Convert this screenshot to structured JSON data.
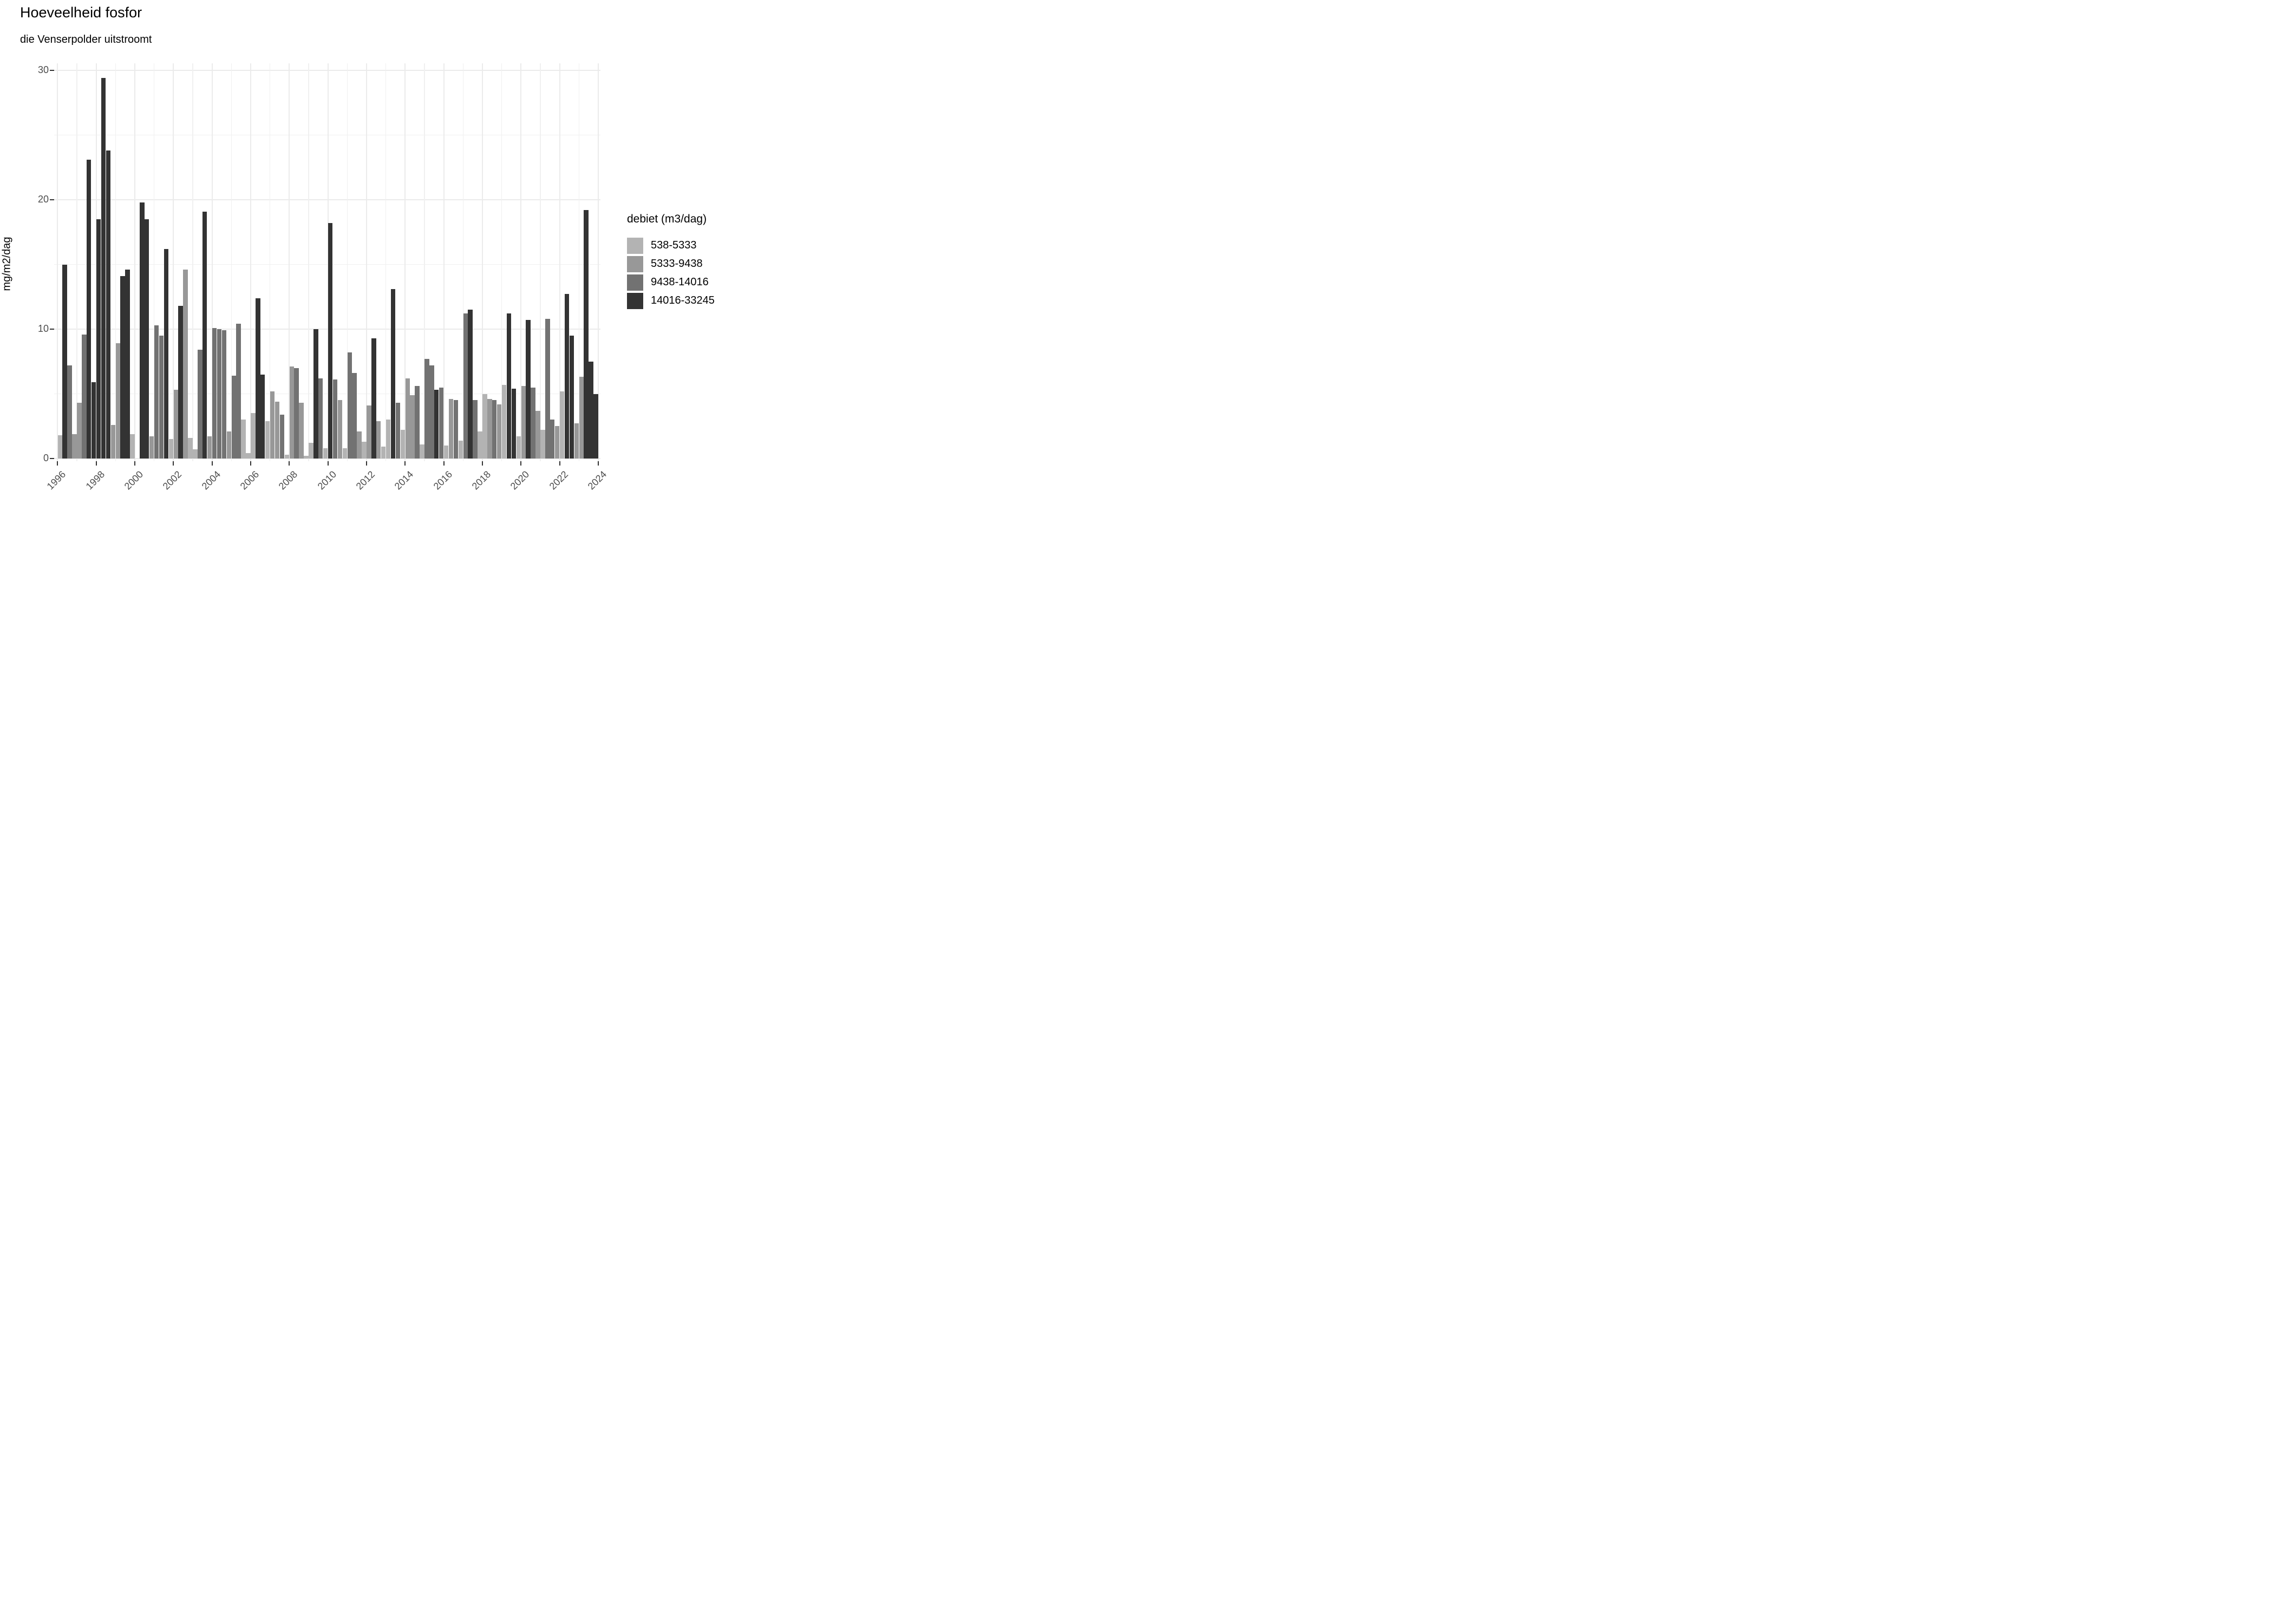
{
  "title": "Hoeveelheid fosfor",
  "subtitle": "die Venserpolder uitstroomt",
  "y_axis": {
    "label": "mg/m2/dag",
    "ticks": [
      0,
      10,
      20,
      30
    ],
    "minor_ticks": [
      5,
      15,
      25
    ]
  },
  "x_axis": {
    "tick_years": [
      1996,
      1998,
      2000,
      2002,
      2004,
      2006,
      2008,
      2010,
      2012,
      2014,
      2016,
      2018,
      2020,
      2022,
      2024
    ],
    "start_year": 1996,
    "end_year": 2024
  },
  "legend": {
    "title": "debiet (m3/dag)",
    "entries": [
      {
        "label": "538-5333",
        "color": "#b3b3b3"
      },
      {
        "label": "5333-9438",
        "color": "#989898"
      },
      {
        "label": "9438-14016",
        "color": "#727272"
      },
      {
        "label": "14016-33245",
        "color": "#333333"
      }
    ]
  },
  "chart_data": {
    "type": "bar",
    "title": "Hoeveelheid fosfor",
    "subtitle": "die Venserpolder uitstroomt",
    "ylabel": "mg/m2/dag",
    "ylim": [
      0,
      30.5
    ],
    "xlim": [
      1996,
      2024
    ],
    "grid": true,
    "legend_position": "right",
    "series_key": "debiet (m3/dag)",
    "categories": [
      "538-5333",
      "5333-9438",
      "9438-14016",
      "14016-33245"
    ],
    "points": [
      {
        "year": 1996,
        "quarter": 1,
        "debiet": "538-5333",
        "value": 1.8
      },
      {
        "year": 1996,
        "quarter": 2,
        "debiet": "14016-33245",
        "value": 15.0
      },
      {
        "year": 1996,
        "quarter": 3,
        "debiet": "9438-14016",
        "value": 7.2
      },
      {
        "year": 1996,
        "quarter": 4,
        "debiet": "5333-9438",
        "value": 1.9
      },
      {
        "year": 1997,
        "quarter": 1,
        "debiet": "5333-9438",
        "value": 4.3
      },
      {
        "year": 1997,
        "quarter": 2,
        "debiet": "9438-14016",
        "value": 9.6
      },
      {
        "year": 1997,
        "quarter": 3,
        "debiet": "14016-33245",
        "value": 23.1
      },
      {
        "year": 1997,
        "quarter": 4,
        "debiet": "14016-33245",
        "value": 5.9
      },
      {
        "year": 1998,
        "quarter": 1,
        "debiet": "14016-33245",
        "value": 18.5
      },
      {
        "year": 1998,
        "quarter": 2,
        "debiet": "14016-33245",
        "value": 29.4
      },
      {
        "year": 1998,
        "quarter": 3,
        "debiet": "14016-33245",
        "value": 23.8
      },
      {
        "year": 1998,
        "quarter": 4,
        "debiet": "5333-9438",
        "value": 2.6
      },
      {
        "year": 1999,
        "quarter": 1,
        "debiet": "5333-9438",
        "value": 8.9
      },
      {
        "year": 1999,
        "quarter": 2,
        "debiet": "14016-33245",
        "value": 14.1
      },
      {
        "year": 1999,
        "quarter": 3,
        "debiet": "14016-33245",
        "value": 14.6
      },
      {
        "year": 1999,
        "quarter": 4,
        "debiet": "538-5333",
        "value": 1.9
      },
      {
        "year": 2000,
        "quarter": 2,
        "debiet": "14016-33245",
        "value": 19.8
      },
      {
        "year": 2000,
        "quarter": 3,
        "debiet": "14016-33245",
        "value": 18.5
      },
      {
        "year": 2000,
        "quarter": 4,
        "debiet": "5333-9438",
        "value": 1.7
      },
      {
        "year": 2001,
        "quarter": 1,
        "debiet": "9438-14016",
        "value": 10.3
      },
      {
        "year": 2001,
        "quarter": 2,
        "debiet": "9438-14016",
        "value": 9.5
      },
      {
        "year": 2001,
        "quarter": 3,
        "debiet": "14016-33245",
        "value": 16.2
      },
      {
        "year": 2001,
        "quarter": 4,
        "debiet": "538-5333",
        "value": 1.5
      },
      {
        "year": 2002,
        "quarter": 1,
        "debiet": "5333-9438",
        "value": 5.3
      },
      {
        "year": 2002,
        "quarter": 2,
        "debiet": "14016-33245",
        "value": 11.8
      },
      {
        "year": 2002,
        "quarter": 3,
        "debiet": "5333-9438",
        "value": 14.6
      },
      {
        "year": 2002,
        "quarter": 4,
        "debiet": "538-5333",
        "value": 1.6
      },
      {
        "year": 2003,
        "quarter": 1,
        "debiet": "538-5333",
        "value": 0.7
      },
      {
        "year": 2003,
        "quarter": 2,
        "debiet": "9438-14016",
        "value": 8.4
      },
      {
        "year": 2003,
        "quarter": 3,
        "debiet": "14016-33245",
        "value": 19.1
      },
      {
        "year": 2003,
        "quarter": 4,
        "debiet": "5333-9438",
        "value": 1.7
      },
      {
        "year": 2004,
        "quarter": 1,
        "debiet": "9438-14016",
        "value": 10.1
      },
      {
        "year": 2004,
        "quarter": 2,
        "debiet": "9438-14016",
        "value": 10.0
      },
      {
        "year": 2004,
        "quarter": 3,
        "debiet": "9438-14016",
        "value": 9.9
      },
      {
        "year": 2004,
        "quarter": 4,
        "debiet": "5333-9438",
        "value": 2.1
      },
      {
        "year": 2005,
        "quarter": 1,
        "debiet": "9438-14016",
        "value": 6.4
      },
      {
        "year": 2005,
        "quarter": 2,
        "debiet": "9438-14016",
        "value": 10.4
      },
      {
        "year": 2005,
        "quarter": 3,
        "debiet": "538-5333",
        "value": 3.0
      },
      {
        "year": 2005,
        "quarter": 4,
        "debiet": "538-5333",
        "value": 0.4
      },
      {
        "year": 2006,
        "quarter": 1,
        "debiet": "538-5333",
        "value": 3.5
      },
      {
        "year": 2006,
        "quarter": 2,
        "debiet": "14016-33245",
        "value": 12.4
      },
      {
        "year": 2006,
        "quarter": 3,
        "debiet": "14016-33245",
        "value": 6.5
      },
      {
        "year": 2006,
        "quarter": 4,
        "debiet": "538-5333",
        "value": 2.9
      },
      {
        "year": 2007,
        "quarter": 1,
        "debiet": "5333-9438",
        "value": 5.2
      },
      {
        "year": 2007,
        "quarter": 2,
        "debiet": "5333-9438",
        "value": 4.4
      },
      {
        "year": 2007,
        "quarter": 3,
        "debiet": "9438-14016",
        "value": 3.4
      },
      {
        "year": 2007,
        "quarter": 4,
        "debiet": "538-5333",
        "value": 0.3
      },
      {
        "year": 2008,
        "quarter": 1,
        "debiet": "5333-9438",
        "value": 7.1
      },
      {
        "year": 2008,
        "quarter": 2,
        "debiet": "9438-14016",
        "value": 7.0
      },
      {
        "year": 2008,
        "quarter": 3,
        "debiet": "5333-9438",
        "value": 4.3
      },
      {
        "year": 2008,
        "quarter": 4,
        "debiet": "538-5333",
        "value": 0.2
      },
      {
        "year": 2009,
        "quarter": 1,
        "debiet": "538-5333",
        "value": 1.2
      },
      {
        "year": 2009,
        "quarter": 2,
        "debiet": "14016-33245",
        "value": 10.0
      },
      {
        "year": 2009,
        "quarter": 3,
        "debiet": "9438-14016",
        "value": 6.2
      },
      {
        "year": 2009,
        "quarter": 4,
        "debiet": "538-5333",
        "value": 0.8
      },
      {
        "year": 2010,
        "quarter": 1,
        "debiet": "14016-33245",
        "value": 18.2
      },
      {
        "year": 2010,
        "quarter": 2,
        "debiet": "9438-14016",
        "value": 6.1
      },
      {
        "year": 2010,
        "quarter": 3,
        "debiet": "5333-9438",
        "value": 4.5
      },
      {
        "year": 2010,
        "quarter": 4,
        "debiet": "538-5333",
        "value": 0.8
      },
      {
        "year": 2011,
        "quarter": 1,
        "debiet": "9438-14016",
        "value": 8.2
      },
      {
        "year": 2011,
        "quarter": 2,
        "debiet": "9438-14016",
        "value": 6.6
      },
      {
        "year": 2011,
        "quarter": 3,
        "debiet": "5333-9438",
        "value": 2.1
      },
      {
        "year": 2011,
        "quarter": 4,
        "debiet": "538-5333",
        "value": 1.3
      },
      {
        "year": 2012,
        "quarter": 1,
        "debiet": "5333-9438",
        "value": 4.1
      },
      {
        "year": 2012,
        "quarter": 2,
        "debiet": "14016-33245",
        "value": 9.3
      },
      {
        "year": 2012,
        "quarter": 3,
        "debiet": "5333-9438",
        "value": 2.9
      },
      {
        "year": 2012,
        "quarter": 4,
        "debiet": "538-5333",
        "value": 0.9
      },
      {
        "year": 2013,
        "quarter": 1,
        "debiet": "538-5333",
        "value": 3.0
      },
      {
        "year": 2013,
        "quarter": 2,
        "debiet": "14016-33245",
        "value": 13.1
      },
      {
        "year": 2013,
        "quarter": 3,
        "debiet": "9438-14016",
        "value": 4.3
      },
      {
        "year": 2013,
        "quarter": 4,
        "debiet": "538-5333",
        "value": 2.2
      },
      {
        "year": 2014,
        "quarter": 1,
        "debiet": "5333-9438",
        "value": 6.2
      },
      {
        "year": 2014,
        "quarter": 2,
        "debiet": "5333-9438",
        "value": 4.9
      },
      {
        "year": 2014,
        "quarter": 3,
        "debiet": "9438-14016",
        "value": 5.6
      },
      {
        "year": 2014,
        "quarter": 4,
        "debiet": "538-5333",
        "value": 1.1
      },
      {
        "year": 2015,
        "quarter": 1,
        "debiet": "9438-14016",
        "value": 7.7
      },
      {
        "year": 2015,
        "quarter": 2,
        "debiet": "9438-14016",
        "value": 7.2
      },
      {
        "year": 2015,
        "quarter": 3,
        "debiet": "14016-33245",
        "value": 5.3
      },
      {
        "year": 2015,
        "quarter": 4,
        "debiet": "9438-14016",
        "value": 5.5
      },
      {
        "year": 2016,
        "quarter": 1,
        "debiet": "538-5333",
        "value": 1.0
      },
      {
        "year": 2016,
        "quarter": 2,
        "debiet": "5333-9438",
        "value": 4.6
      },
      {
        "year": 2016,
        "quarter": 3,
        "debiet": "9438-14016",
        "value": 4.5
      },
      {
        "year": 2016,
        "quarter": 4,
        "debiet": "538-5333",
        "value": 1.4
      },
      {
        "year": 2017,
        "quarter": 1,
        "debiet": "9438-14016",
        "value": 11.2
      },
      {
        "year": 2017,
        "quarter": 2,
        "debiet": "14016-33245",
        "value": 11.5
      },
      {
        "year": 2017,
        "quarter": 3,
        "debiet": "9438-14016",
        "value": 4.5
      },
      {
        "year": 2017,
        "quarter": 4,
        "debiet": "538-5333",
        "value": 2.1
      },
      {
        "year": 2018,
        "quarter": 1,
        "debiet": "538-5333",
        "value": 5.0
      },
      {
        "year": 2018,
        "quarter": 2,
        "debiet": "5333-9438",
        "value": 4.6
      },
      {
        "year": 2018,
        "quarter": 3,
        "debiet": "9438-14016",
        "value": 4.5
      },
      {
        "year": 2018,
        "quarter": 4,
        "debiet": "5333-9438",
        "value": 4.2
      },
      {
        "year": 2019,
        "quarter": 1,
        "debiet": "538-5333",
        "value": 5.7
      },
      {
        "year": 2019,
        "quarter": 2,
        "debiet": "14016-33245",
        "value": 11.2
      },
      {
        "year": 2019,
        "quarter": 3,
        "debiet": "14016-33245",
        "value": 5.4
      },
      {
        "year": 2019,
        "quarter": 4,
        "debiet": "538-5333",
        "value": 1.7
      },
      {
        "year": 2020,
        "quarter": 1,
        "debiet": "5333-9438",
        "value": 5.6
      },
      {
        "year": 2020,
        "quarter": 2,
        "debiet": "14016-33245",
        "value": 10.7
      },
      {
        "year": 2020,
        "quarter": 3,
        "debiet": "9438-14016",
        "value": 5.5
      },
      {
        "year": 2020,
        "quarter": 4,
        "debiet": "5333-9438",
        "value": 3.7
      },
      {
        "year": 2021,
        "quarter": 1,
        "debiet": "538-5333",
        "value": 2.2
      },
      {
        "year": 2021,
        "quarter": 2,
        "debiet": "9438-14016",
        "value": 10.8
      },
      {
        "year": 2021,
        "quarter": 3,
        "debiet": "9438-14016",
        "value": 3.0
      },
      {
        "year": 2021,
        "quarter": 4,
        "debiet": "5333-9438",
        "value": 2.5
      },
      {
        "year": 2022,
        "quarter": 1,
        "debiet": "538-5333",
        "value": 5.2
      },
      {
        "year": 2022,
        "quarter": 2,
        "debiet": "14016-33245",
        "value": 12.7
      },
      {
        "year": 2022,
        "quarter": 3,
        "debiet": "14016-33245",
        "value": 9.5
      },
      {
        "year": 2022,
        "quarter": 4,
        "debiet": "5333-9438",
        "value": 2.7
      },
      {
        "year": 2023,
        "quarter": 1,
        "debiet": "5333-9438",
        "value": 6.3
      },
      {
        "year": 2023,
        "quarter": 2,
        "debiet": "14016-33245",
        "value": 19.2
      },
      {
        "year": 2023,
        "quarter": 3,
        "debiet": "14016-33245",
        "value": 7.5
      },
      {
        "year": 2023,
        "quarter": 4,
        "debiet": "14016-33245",
        "value": 5.0
      }
    ]
  }
}
